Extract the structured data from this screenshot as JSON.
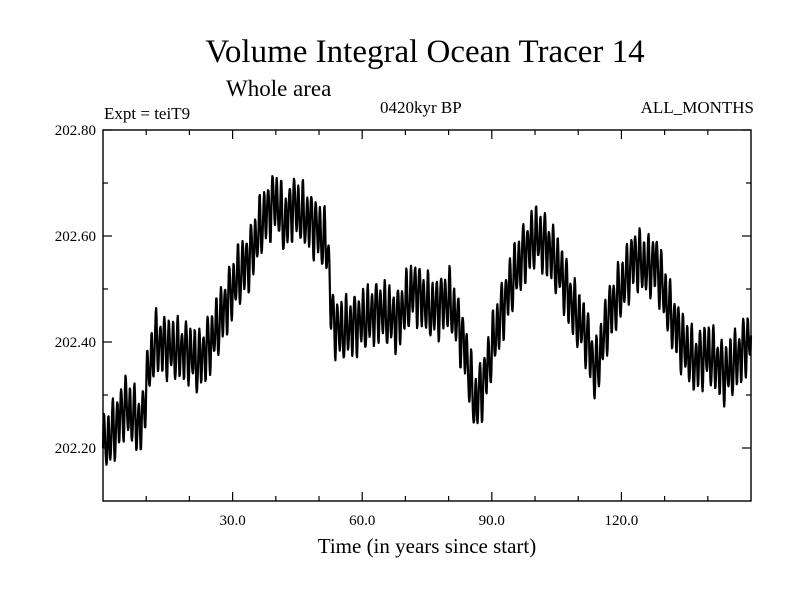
{
  "header": {
    "title": "Volume Integral Ocean Tracer 14",
    "subtitle": "Whole area",
    "experiment": "Expt = teiT9",
    "period": "0420kyr BP",
    "months": "ALL_MONTHS"
  },
  "chart_data": {
    "type": "line",
    "title": "Volume Integral Ocean Tracer 14",
    "subtitle": "Whole area",
    "xlabel": "Time (in years since start)",
    "ylabel": "",
    "xlim": [
      0,
      150
    ],
    "ylim": [
      202.1,
      202.8
    ],
    "x_ticks": [
      30,
      60,
      90,
      120
    ],
    "x_tick_labels": [
      "30.0",
      "60.0",
      "90.0",
      "120.0"
    ],
    "x_minor_ticks": [
      10,
      20,
      40,
      50,
      70,
      80,
      100,
      110,
      130,
      140
    ],
    "y_ticks": [
      202.2,
      202.4,
      202.6,
      202.8
    ],
    "y_tick_labels": [
      "202.20",
      "202.40",
      "202.60",
      "202.80"
    ],
    "y_minor_ticks": [
      202.3,
      202.5,
      202.7
    ],
    "series": [
      {
        "name": "Tracer 14",
        "color": "#000000",
        "seasonal_amplitude": 0.05,
        "envelope_x": [
          0,
          3,
          5,
          7,
          9,
          10,
          12,
          15,
          20,
          22,
          25,
          28,
          31,
          34,
          37,
          40,
          42,
          44,
          46,
          49,
          52,
          53,
          55,
          60,
          64,
          68,
          72,
          76,
          80,
          82,
          84,
          86,
          88,
          91,
          94,
          97,
          100,
          103,
          106,
          109,
          112,
          114,
          117,
          120,
          123,
          126,
          128,
          131,
          134,
          137,
          140,
          144,
          147,
          150
        ],
        "envelope_y": [
          202.2,
          202.24,
          202.28,
          202.26,
          202.24,
          202.32,
          202.4,
          202.39,
          202.38,
          202.36,
          202.4,
          202.46,
          202.52,
          202.56,
          202.63,
          202.67,
          202.62,
          202.66,
          202.64,
          202.62,
          202.58,
          202.44,
          202.42,
          202.44,
          202.46,
          202.44,
          202.5,
          202.46,
          202.48,
          202.44,
          202.38,
          202.28,
          202.32,
          202.42,
          202.5,
          202.56,
          202.6,
          202.58,
          202.53,
          202.46,
          202.41,
          202.34,
          202.45,
          202.5,
          202.56,
          202.54,
          202.55,
          202.46,
          202.4,
          202.36,
          202.38,
          202.34,
          202.37,
          202.41
        ]
      }
    ]
  }
}
